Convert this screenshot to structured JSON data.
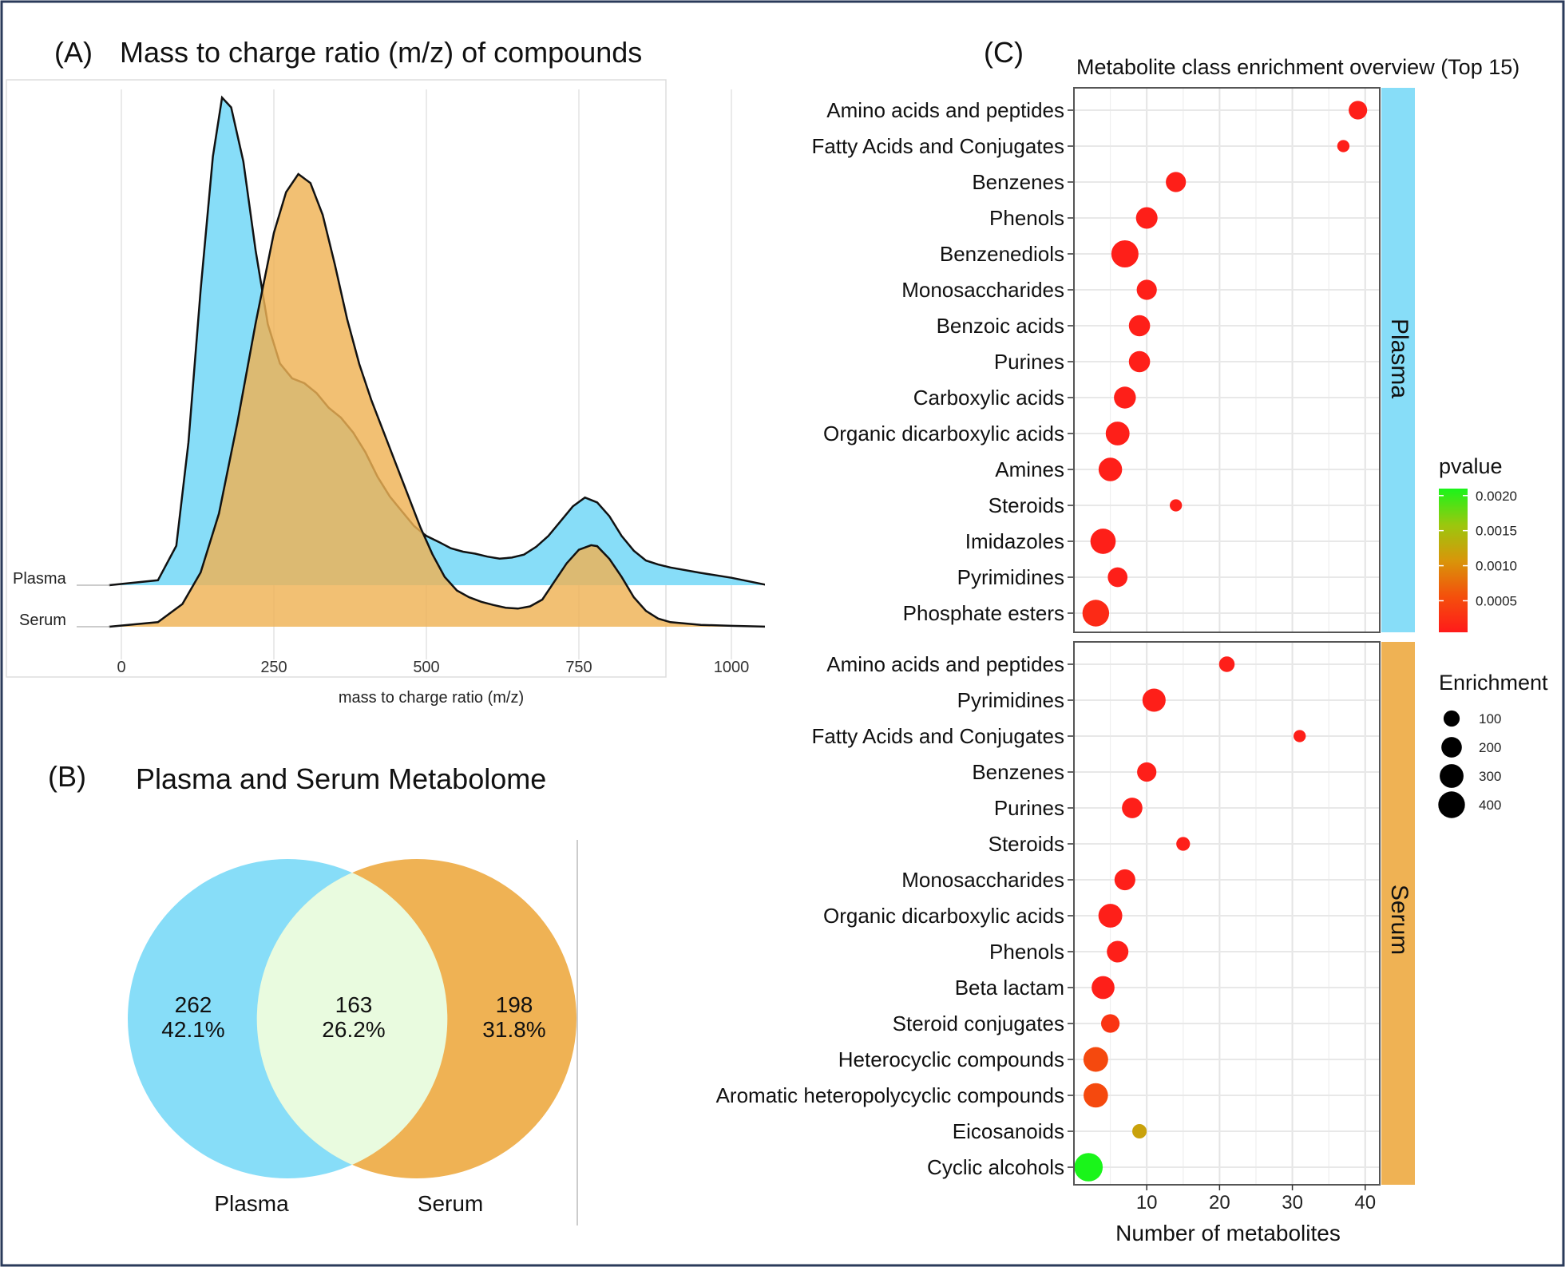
{
  "panel_a": {
    "label": "(A)",
    "title": "Mass to charge ratio (m/z) of compounds"
  },
  "panel_b": {
    "label": "(B)",
    "title": "Plasma and Serum Metabolome"
  },
  "panel_c": {
    "label": "(C)",
    "title": "Metabolite class enrichment overview (Top 15)"
  },
  "colors": {
    "plasma": "#87DDF8",
    "serum": "#EFB254",
    "overlap": "#E9FBDF",
    "frame": "#2A3A5A"
  },
  "chart_data": [
    {
      "type": "area",
      "id": "mz_density",
      "title": "Mass to charge ratio (m/z) of compounds",
      "xlabel": "mass to charge ratio (m/z)",
      "ylabel": "",
      "xlim": [
        -20,
        1060
      ],
      "x_ticks": [
        0,
        250,
        500,
        750,
        1000
      ],
      "x_tick_labels": [
        "0",
        "250",
        "500",
        "750",
        "1000"
      ],
      "series": [
        {
          "name": "Plasma",
          "color": "#87DDF8",
          "x": [
            -20,
            60,
            90,
            110,
            130,
            150,
            165,
            180,
            200,
            220,
            240,
            260,
            280,
            300,
            320,
            340,
            360,
            380,
            400,
            420,
            440,
            460,
            480,
            500,
            520,
            540,
            560,
            580,
            600,
            620,
            640,
            660,
            680,
            700,
            720,
            740,
            760,
            780,
            800,
            820,
            840,
            860,
            880,
            900,
            950,
            1000,
            1060
          ],
          "density": [
            0,
            0.01,
            0.08,
            0.29,
            0.6,
            0.87,
            0.99,
            0.97,
            0.86,
            0.68,
            0.53,
            0.45,
            0.42,
            0.41,
            0.39,
            0.36,
            0.34,
            0.31,
            0.27,
            0.22,
            0.18,
            0.15,
            0.12,
            0.1,
            0.088,
            0.075,
            0.068,
            0.064,
            0.058,
            0.054,
            0.056,
            0.062,
            0.078,
            0.1,
            0.13,
            0.16,
            0.178,
            0.168,
            0.14,
            0.1,
            0.07,
            0.05,
            0.042,
            0.036,
            0.025,
            0.015,
            0
          ]
        },
        {
          "name": "Serum",
          "color": "#EFB254",
          "x": [
            -20,
            60,
            100,
            130,
            160,
            190,
            220,
            250,
            270,
            290,
            310,
            330,
            350,
            370,
            390,
            410,
            430,
            450,
            470,
            490,
            510,
            530,
            550,
            570,
            590,
            610,
            630,
            650,
            670,
            690,
            710,
            730,
            750,
            770,
            780,
            800,
            820,
            840,
            860,
            880,
            900,
            950,
            1000,
            1060
          ],
          "density": [
            0,
            0.01,
            0.05,
            0.12,
            0.25,
            0.45,
            0.67,
            0.87,
            0.96,
            1.0,
            0.98,
            0.91,
            0.8,
            0.68,
            0.58,
            0.5,
            0.43,
            0.36,
            0.29,
            0.22,
            0.16,
            0.11,
            0.08,
            0.065,
            0.055,
            0.048,
            0.042,
            0.04,
            0.045,
            0.06,
            0.1,
            0.14,
            0.17,
            0.18,
            0.178,
            0.15,
            0.11,
            0.065,
            0.035,
            0.018,
            0.01,
            0.004,
            0.002,
            0
          ]
        }
      ],
      "ridge_labels": [
        "Plasma",
        "Serum"
      ]
    },
    {
      "type": "venn",
      "id": "metabolome_venn",
      "title": "Plasma and Serum Metabolome",
      "sets": [
        "Plasma",
        "Serum"
      ],
      "regions": [
        {
          "set": "Plasma only",
          "count": "262",
          "percent": "42.1%"
        },
        {
          "set": "Both",
          "count": "163",
          "percent": "26.2%"
        },
        {
          "set": "Serum only",
          "count": "198",
          "percent": "31.8%"
        }
      ]
    },
    {
      "type": "scatter",
      "id": "enrichment_dotplot",
      "title": "Metabolite class enrichment overview (Top 15)",
      "xlabel": "Number of metabolites",
      "xlim": [
        0,
        42
      ],
      "x_ticks": [
        10,
        20,
        30,
        40
      ],
      "x_tick_labels": [
        "10",
        "20",
        "30",
        "40"
      ],
      "color_legend": {
        "title": "pvalue",
        "range": [
          5e-05,
          0.0021
        ],
        "ticks": [
          0.0005,
          0.001,
          0.0015,
          0.002
        ],
        "tick_labels": [
          "0.0005",
          "0.0010",
          "0.0015",
          "0.0020"
        ],
        "low_color": "#FF1A1A",
        "high_color": "#1AF51A"
      },
      "size_legend": {
        "title": "Enrichment",
        "values": [
          100,
          200,
          300,
          400
        ],
        "labels": [
          "100",
          "200",
          "300",
          "400"
        ]
      },
      "facets": [
        {
          "name": "Plasma",
          "color": "#87DDF8",
          "points": [
            {
              "class": "Amino acids and peptides",
              "count": 39,
              "enrichment": 150,
              "pvalue": 0.0001
            },
            {
              "class": "Fatty Acids and Conjugates",
              "count": 37,
              "enrichment": 40,
              "pvalue": 0.0001
            },
            {
              "class": "Benzenes",
              "count": 14,
              "enrichment": 190,
              "pvalue": 0.0001
            },
            {
              "class": "Phenols",
              "count": 10,
              "enrichment": 230,
              "pvalue": 0.0001
            },
            {
              "class": "Benzenediols",
              "count": 7,
              "enrichment": 420,
              "pvalue": 0.0001
            },
            {
              "class": "Monosaccharides",
              "count": 10,
              "enrichment": 190,
              "pvalue": 0.0001
            },
            {
              "class": "Benzoic acids",
              "count": 9,
              "enrichment": 220,
              "pvalue": 0.0001
            },
            {
              "class": "Purines",
              "count": 9,
              "enrichment": 220,
              "pvalue": 0.0001
            },
            {
              "class": "Carboxylic acids",
              "count": 7,
              "enrichment": 240,
              "pvalue": 0.0001
            },
            {
              "class": "Organic dicarboxylic acids",
              "count": 6,
              "enrichment": 300,
              "pvalue": 0.0001
            },
            {
              "class": "Amines",
              "count": 5,
              "enrichment": 290,
              "pvalue": 0.0001
            },
            {
              "class": "Steroids",
              "count": 14,
              "enrichment": 40,
              "pvalue": 0.0001
            },
            {
              "class": "Imidazoles",
              "count": 4,
              "enrichment": 350,
              "pvalue": 0.0001
            },
            {
              "class": "Pyrimidines",
              "count": 6,
              "enrichment": 180,
              "pvalue": 0.0001
            },
            {
              "class": "Phosphate esters",
              "count": 3,
              "enrichment": 400,
              "pvalue": 0.0002
            }
          ]
        },
        {
          "name": "Serum",
          "color": "#EFB254",
          "points": [
            {
              "class": "Amino acids and peptides",
              "count": 21,
              "enrichment": 90,
              "pvalue": 0.0001
            },
            {
              "class": "Pyrimidines",
              "count": 11,
              "enrichment": 280,
              "pvalue": 0.0001
            },
            {
              "class": "Fatty Acids and Conjugates",
              "count": 31,
              "enrichment": 40,
              "pvalue": 0.0001
            },
            {
              "class": "Benzenes",
              "count": 10,
              "enrichment": 170,
              "pvalue": 0.0001
            },
            {
              "class": "Purines",
              "count": 8,
              "enrichment": 200,
              "pvalue": 0.0001
            },
            {
              "class": "Steroids",
              "count": 15,
              "enrichment": 60,
              "pvalue": 0.0001
            },
            {
              "class": "Monosaccharides",
              "count": 7,
              "enrichment": 210,
              "pvalue": 0.0001
            },
            {
              "class": "Organic dicarboxylic acids",
              "count": 5,
              "enrichment": 300,
              "pvalue": 0.0001
            },
            {
              "class": "Phenols",
              "count": 6,
              "enrichment": 230,
              "pvalue": 0.0001
            },
            {
              "class": "Beta lactam",
              "count": 4,
              "enrichment": 270,
              "pvalue": 0.0001
            },
            {
              "class": "Steroid conjugates",
              "count": 5,
              "enrichment": 150,
              "pvalue": 0.0003
            },
            {
              "class": "Heterocyclic compounds",
              "count": 3,
              "enrichment": 330,
              "pvalue": 0.0005
            },
            {
              "class": "Aromatic heteropolycyclic compounds",
              "count": 3,
              "enrichment": 320,
              "pvalue": 0.0005
            },
            {
              "class": "Eicosanoids",
              "count": 9,
              "enrichment": 70,
              "pvalue": 0.0012
            },
            {
              "class": "Cyclic alcohols",
              "count": 2,
              "enrichment": 470,
              "pvalue": 0.0021
            }
          ]
        }
      ]
    }
  ]
}
